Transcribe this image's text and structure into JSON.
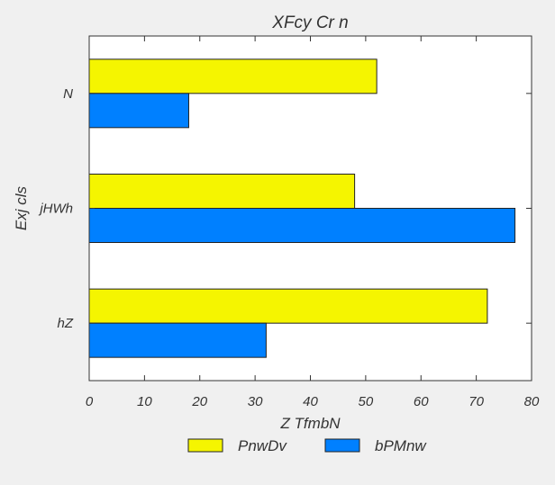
{
  "chart_data": {
    "type": "bar",
    "orientation": "horizontal",
    "title": "XFcy  Cr n",
    "xlabel": "Z TfmbN",
    "ylabel": "Exj cls",
    "categories": [
      "hZ",
      "jHWh",
      "N"
    ],
    "series": [
      {
        "name": "PnwDv",
        "color": "#f5f500",
        "values": [
          72,
          48,
          52
        ]
      },
      {
        "name": "bPMnw",
        "color": "#0080ff",
        "values": [
          32,
          77,
          18
        ]
      }
    ],
    "xlim": [
      0,
      80
    ],
    "xticks": [
      0,
      10,
      20,
      30,
      40,
      50,
      60,
      70,
      80
    ],
    "grid": false,
    "legend_position": "bottom-center"
  }
}
